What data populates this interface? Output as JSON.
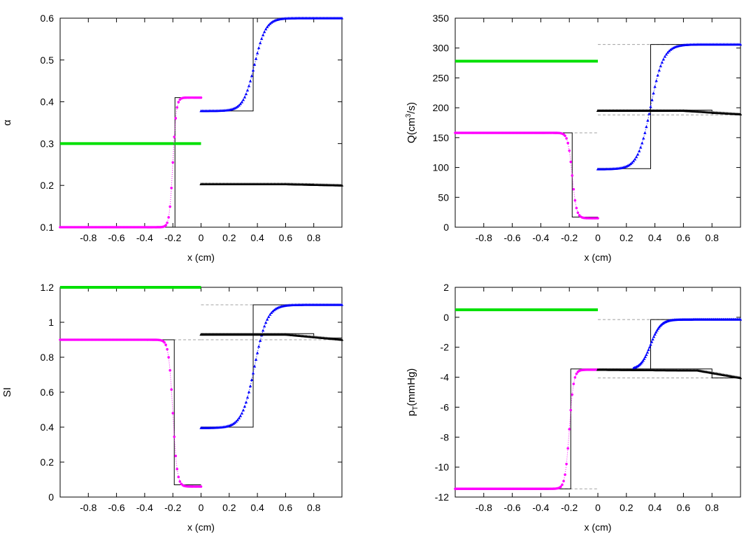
{
  "figure_title": "",
  "colors": {
    "green": "#00e000",
    "magenta": "#ff00ff",
    "blue": "#0000ff",
    "black": "#000000",
    "dashed": "#a0a0a0"
  },
  "chart_data": [
    {
      "id": "alpha",
      "type": "line",
      "ylabel": "α",
      "xlabel": "x (cm)",
      "xlim": [
        -1,
        1
      ],
      "ylim": [
        0.1,
        0.6
      ],
      "yticks": [
        "0.1",
        "0.2",
        "0.3",
        "0.4",
        "0.5",
        "0.6"
      ],
      "yticks_values": [
        0.1,
        0.2,
        0.3,
        0.4,
        0.5,
        0.6
      ],
      "xticks": [
        "-0.8",
        "-0.6",
        "-0.4",
        "-0.2",
        "0",
        "0.2",
        "0.4",
        "0.6",
        "0.8"
      ],
      "xticks_values": [
        -0.8,
        -0.6,
        -0.4,
        -0.2,
        0,
        0.2,
        0.4,
        0.6,
        0.8
      ],
      "series": [
        {
          "name": "branch-green",
          "color": "green",
          "marker": "square",
          "kind": "const",
          "x": [
            -1,
            0
          ],
          "value": 0.3
        },
        {
          "name": "branch-magenta",
          "color": "magenta",
          "marker": "circle",
          "kind": "sigmoid",
          "x": [
            -1,
            0
          ],
          "left": 0.1,
          "right": 0.41,
          "center": -0.2,
          "width": 0.012
        },
        {
          "name": "branch-blue",
          "color": "blue",
          "marker": "triangle",
          "kind": "sigmoid",
          "x": [
            0,
            1
          ],
          "left": 0.378,
          "right": 0.6,
          "center": 0.38,
          "width": 0.04
        },
        {
          "name": "branch-black",
          "color": "black",
          "marker": "triangle",
          "kind": "linear",
          "x": [
            0,
            1
          ],
          "left": 0.203,
          "right": 0.2
        }
      ],
      "exact": [
        {
          "name": "exact-left",
          "points": [
            [
              -1,
              0.1
            ],
            [
              -0.185,
              0.1
            ],
            [
              -0.185,
              0.41
            ],
            [
              0,
              0.41
            ]
          ]
        },
        {
          "name": "exact-right-top",
          "points": [
            [
              0,
              0.378
            ],
            [
              0.37,
              0.378
            ],
            [
              0.37,
              0.6
            ],
            [
              1,
              0.6
            ]
          ]
        },
        {
          "name": "exact-right-bottom",
          "points": [
            [
              0,
              0.203
            ],
            [
              0.8,
              0.203
            ],
            [
              0.8,
              0.2
            ],
            [
              1,
              0.2
            ]
          ]
        }
      ],
      "dashed": []
    },
    {
      "id": "flow",
      "type": "line",
      "ylabel": "Q(cm³/s)",
      "xlabel": "x (cm)",
      "xlim": [
        -1,
        1
      ],
      "ylim": [
        0,
        350
      ],
      "yticks": [
        "0",
        "50",
        "100",
        "150",
        "200",
        "250",
        "300",
        "350"
      ],
      "yticks_values": [
        0,
        50,
        100,
        150,
        200,
        250,
        300,
        350
      ],
      "xticks": [
        "-0.8",
        "-0.6",
        "-0.4",
        "-0.2",
        "0",
        "0.2",
        "0.4",
        "0.6",
        "0.8"
      ],
      "xticks_values": [
        -0.8,
        -0.6,
        -0.4,
        -0.2,
        0,
        0.2,
        0.4,
        0.6,
        0.8
      ],
      "series": [
        {
          "name": "branch-green",
          "color": "green",
          "marker": "square",
          "kind": "const",
          "x": [
            -1,
            0
          ],
          "value": 278
        },
        {
          "name": "branch-magenta",
          "color": "magenta",
          "marker": "circle",
          "kind": "sigmoid",
          "x": [
            -1,
            0
          ],
          "left": 158,
          "right": 15,
          "center": -0.18,
          "width": 0.015
        },
        {
          "name": "branch-blue",
          "color": "blue",
          "marker": "triangle",
          "kind": "sigmoid",
          "x": [
            0,
            1
          ],
          "left": 97,
          "right": 306,
          "center": 0.37,
          "width": 0.045
        },
        {
          "name": "branch-black",
          "color": "black",
          "marker": "triangle",
          "kind": "linear",
          "x": [
            0,
            1
          ],
          "left": 195,
          "right": 189
        }
      ],
      "exact": [
        {
          "name": "exact-left",
          "points": [
            [
              -1,
              158
            ],
            [
              -0.18,
              158
            ],
            [
              -0.18,
              17
            ],
            [
              0,
              17
            ]
          ]
        },
        {
          "name": "exact-right-top",
          "points": [
            [
              0,
              98
            ],
            [
              0.37,
              98
            ],
            [
              0.37,
              306
            ],
            [
              1,
              306
            ]
          ]
        },
        {
          "name": "exact-right-bottom",
          "points": [
            [
              0,
              196
            ],
            [
              0.8,
              196
            ],
            [
              0.8,
              190
            ],
            [
              1,
              190
            ]
          ]
        }
      ],
      "dashed": [
        {
          "name": "dashed-1",
          "points": [
            [
              -0.3,
              158
            ],
            [
              0,
              158
            ]
          ]
        },
        {
          "name": "dashed-2",
          "points": [
            [
              0,
              306
            ],
            [
              1,
              306
            ]
          ]
        },
        {
          "name": "dashed-3",
          "points": [
            [
              0,
              188
            ],
            [
              1,
              188
            ]
          ]
        }
      ]
    },
    {
      "id": "si",
      "type": "line",
      "ylabel": "SI",
      "xlabel": "x (cm)",
      "xlim": [
        -1,
        1
      ],
      "ylim": [
        0,
        1.2
      ],
      "yticks": [
        "0",
        "0.2",
        "0.4",
        "0.6",
        "0.8",
        "1",
        "1.2"
      ],
      "yticks_values": [
        0,
        0.2,
        0.4,
        0.6,
        0.8,
        1,
        1.2
      ],
      "xticks": [
        "-0.8",
        "-0.6",
        "-0.4",
        "-0.2",
        "0",
        "0.2",
        "0.4",
        "0.6",
        "0.8"
      ],
      "xticks_values": [
        -0.8,
        -0.6,
        -0.4,
        -0.2,
        0,
        0.2,
        0.4,
        0.6,
        0.8
      ],
      "series": [
        {
          "name": "branch-green",
          "color": "green",
          "marker": "square",
          "kind": "const",
          "x": [
            -1,
            0
          ],
          "value": 1.2
        },
        {
          "name": "branch-magenta",
          "color": "magenta",
          "marker": "circle",
          "kind": "sigmoid",
          "x": [
            -1,
            0
          ],
          "left": 0.9,
          "right": 0.06,
          "center": -0.2,
          "width": 0.015
        },
        {
          "name": "branch-blue",
          "color": "blue",
          "marker": "triangle",
          "kind": "sigmoid",
          "x": [
            0,
            1
          ],
          "left": 0.395,
          "right": 1.1,
          "center": 0.38,
          "width": 0.045
        },
        {
          "name": "branch-black",
          "color": "black",
          "marker": "triangle",
          "kind": "linear",
          "x": [
            0,
            1
          ],
          "left": 0.93,
          "right": 0.9
        }
      ],
      "exact": [
        {
          "name": "exact-left",
          "points": [
            [
              -1,
              0.9
            ],
            [
              -0.19,
              0.9
            ],
            [
              -0.19,
              0.07
            ],
            [
              0,
              0.07
            ]
          ]
        },
        {
          "name": "exact-right-top",
          "points": [
            [
              0,
              0.4
            ],
            [
              0.37,
              0.4
            ],
            [
              0.37,
              1.1
            ],
            [
              1,
              1.1
            ]
          ]
        },
        {
          "name": "exact-right-bottom",
          "points": [
            [
              0,
              0.935
            ],
            [
              0.8,
              0.935
            ],
            [
              0.8,
              0.91
            ],
            [
              1,
              0.91
            ]
          ]
        }
      ],
      "dashed": [
        {
          "name": "dashed-1",
          "points": [
            [
              -0.3,
              0.9
            ],
            [
              0,
              0.9
            ]
          ]
        },
        {
          "name": "dashed-2",
          "points": [
            [
              0,
              1.1
            ],
            [
              1,
              1.1
            ]
          ]
        },
        {
          "name": "dashed-3",
          "points": [
            [
              0,
              0.9
            ],
            [
              1,
              0.9
            ]
          ]
        }
      ]
    },
    {
      "id": "pressure",
      "type": "line",
      "ylabel": "pT(mmHg)",
      "ylabel_main": "p",
      "ylabel_sub": "T",
      "ylabel_rest": "(mmHg)",
      "xlabel": "x (cm)",
      "xlim": [
        -1,
        1
      ],
      "ylim": [
        -12,
        2
      ],
      "yticks": [
        "-12",
        "-10",
        "-8",
        "-6",
        "-4",
        "-2",
        "0",
        "2"
      ],
      "yticks_values": [
        -12,
        -10,
        -8,
        -6,
        -4,
        -2,
        0,
        2
      ],
      "xticks": [
        "-0.8",
        "-0.6",
        "-0.4",
        "-0.2",
        "0",
        "0.2",
        "0.4",
        "0.6",
        "0.8"
      ],
      "xticks_values": [
        -0.8,
        -0.6,
        -0.4,
        -0.2,
        0,
        0.2,
        0.4,
        0.6,
        0.8
      ],
      "series": [
        {
          "name": "branch-green",
          "color": "green",
          "marker": "square",
          "kind": "const",
          "x": [
            -1,
            0
          ],
          "value": 0.5
        },
        {
          "name": "branch-magenta",
          "color": "magenta",
          "marker": "circle",
          "kind": "sigmoid",
          "x": [
            -1,
            0
          ],
          "left": -11.45,
          "right": -3.5,
          "center": -0.2,
          "width": 0.015
        },
        {
          "name": "branch-blue",
          "color": "blue",
          "marker": "triangle",
          "kind": "sigmoid",
          "x": [
            0.25,
            1
          ],
          "left": -3.5,
          "right": -0.15,
          "center": 0.37,
          "width": 0.035
        },
        {
          "name": "branch-black",
          "color": "black",
          "marker": "triangle",
          "kind": "linear2",
          "x": [
            0,
            1
          ],
          "left": -3.5,
          "mid": -3.55,
          "right": -4.05
        }
      ],
      "exact": [
        {
          "name": "exact-left",
          "points": [
            [
              -1,
              -11.45
            ],
            [
              -0.19,
              -11.45
            ],
            [
              -0.19,
              -3.45
            ],
            [
              0,
              -3.45
            ]
          ]
        },
        {
          "name": "exact-right-top",
          "points": [
            [
              0.37,
              -3.5
            ],
            [
              0.37,
              -0.15
            ],
            [
              1,
              -0.15
            ]
          ]
        },
        {
          "name": "exact-right-bottom",
          "points": [
            [
              0,
              -3.45
            ],
            [
              0.8,
              -3.45
            ],
            [
              0.8,
              -4.05
            ],
            [
              1,
              -4.05
            ]
          ]
        }
      ],
      "dashed": [
        {
          "name": "dashed-1",
          "points": [
            [
              -0.3,
              -11.45
            ],
            [
              0,
              -11.45
            ]
          ]
        },
        {
          "name": "dashed-2",
          "points": [
            [
              0,
              -0.15
            ],
            [
              1,
              -0.15
            ]
          ]
        },
        {
          "name": "dashed-3",
          "points": [
            [
              0,
              -4.05
            ],
            [
              1,
              -4.05
            ]
          ]
        }
      ]
    }
  ]
}
